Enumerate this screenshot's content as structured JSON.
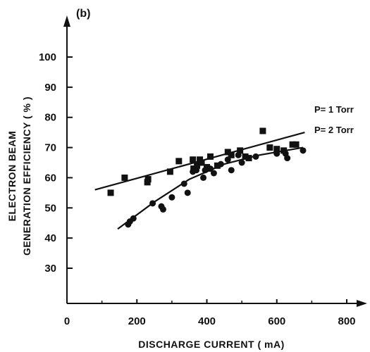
{
  "chart_data": {
    "type": "scatter",
    "panel_label": "(b)",
    "title": "",
    "xlabel": "DISCHARGE CURRENT ( mA)",
    "ylabel_line1": "ELECTRON BEAM",
    "ylabel_line2": "GENERATION EFFICIENCY  ( % )",
    "xlim": [
      0,
      800
    ],
    "ylim": [
      20,
      110
    ],
    "x_ticks": [
      0,
      200,
      400,
      600,
      800
    ],
    "y_ticks": [
      30,
      40,
      50,
      60,
      70,
      80,
      90,
      100
    ],
    "grid": false,
    "series": [
      {
        "name": "P= 1 Torr",
        "marker": "square",
        "points": [
          [
            125,
            55
          ],
          [
            165,
            60
          ],
          [
            230,
            58.5
          ],
          [
            232,
            59.5
          ],
          [
            295,
            62
          ],
          [
            320,
            65.5
          ],
          [
            360,
            66
          ],
          [
            362,
            63
          ],
          [
            372,
            64
          ],
          [
            380,
            66
          ],
          [
            385,
            65
          ],
          [
            400,
            63.5
          ],
          [
            410,
            67
          ],
          [
            430,
            64
          ],
          [
            460,
            68.5
          ],
          [
            470,
            67.5
          ],
          [
            495,
            69
          ],
          [
            510,
            67
          ],
          [
            520,
            66.5
          ],
          [
            560,
            75.5
          ],
          [
            580,
            70
          ],
          [
            600,
            69.5
          ],
          [
            620,
            69
          ],
          [
            645,
            71
          ],
          [
            655,
            71
          ]
        ],
        "fit_line": [
          [
            80,
            56
          ],
          [
            680,
            75
          ]
        ]
      },
      {
        "name": "P= 2 Torr",
        "marker": "circle",
        "points": [
          [
            175,
            44.5
          ],
          [
            180,
            45.5
          ],
          [
            190,
            46.5
          ],
          [
            245,
            51.5
          ],
          [
            270,
            50.5
          ],
          [
            275,
            49.5
          ],
          [
            300,
            53.5
          ],
          [
            335,
            58
          ],
          [
            345,
            55
          ],
          [
            360,
            62
          ],
          [
            370,
            62.5
          ],
          [
            390,
            60
          ],
          [
            395,
            62.5
          ],
          [
            410,
            63
          ],
          [
            420,
            61.5
          ],
          [
            440,
            64.5
          ],
          [
            460,
            66
          ],
          [
            470,
            62.5
          ],
          [
            490,
            67.5
          ],
          [
            500,
            65
          ],
          [
            540,
            67
          ],
          [
            600,
            68
          ],
          [
            625,
            68
          ],
          [
            630,
            66.5
          ],
          [
            675,
            69
          ]
        ],
        "fit_line": [
          [
            145,
            43
          ],
          [
            250,
            52
          ],
          [
            350,
            59.5
          ],
          [
            450,
            64.5
          ],
          [
            550,
            67.5
          ],
          [
            675,
            70
          ]
        ]
      }
    ]
  },
  "colors": {
    "ink": "#111111",
    "background": "#ffffff"
  }
}
